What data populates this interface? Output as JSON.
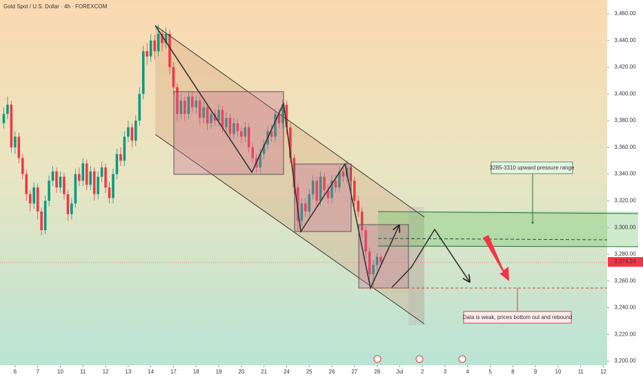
{
  "chart_data": {
    "type": "candlestick",
    "title": "Gold Spot / U.S. Dollar · 4h · FOREXCOM",
    "up_color": "#089981",
    "down_color": "#f23645",
    "grid": false,
    "ylim": [
      3200,
      3460
    ],
    "yticks": [
      {
        "value": 3200,
        "label": "3,200.00"
      },
      {
        "value": 3220,
        "label": "3,220.00"
      },
      {
        "value": 3240,
        "label": "3,240.00"
      },
      {
        "value": 3260,
        "label": "3,260.00"
      },
      {
        "value": 3280,
        "label": "3,280.00"
      },
      {
        "value": 3300,
        "label": "3,300.00"
      },
      {
        "value": 3320,
        "label": "3,320.00"
      },
      {
        "value": 3340,
        "label": "3,340.00"
      },
      {
        "value": 3360,
        "label": "3,360.00"
      },
      {
        "value": 3380,
        "label": "3,380.00"
      },
      {
        "value": 3400,
        "label": "3,400.00"
      },
      {
        "value": 3420,
        "label": "3,420.00"
      },
      {
        "value": 3440,
        "label": "3,440.00"
      },
      {
        "value": 3460,
        "label": "3,460.00"
      }
    ],
    "xlim": [
      -1,
      160
    ],
    "xticks": [
      {
        "value": 3,
        "label": "6"
      },
      {
        "value": 9,
        "label": "7"
      },
      {
        "value": 15,
        "label": "10"
      },
      {
        "value": 21,
        "label": "11"
      },
      {
        "value": 27,
        "label": "12"
      },
      {
        "value": 33,
        "label": "13"
      },
      {
        "value": 39,
        "label": "14"
      },
      {
        "value": 45,
        "label": "17"
      },
      {
        "value": 51,
        "label": "18"
      },
      {
        "value": 57,
        "label": "19"
      },
      {
        "value": 63,
        "label": "20"
      },
      {
        "value": 69,
        "label": "21"
      },
      {
        "value": 75,
        "label": "24"
      },
      {
        "value": 81,
        "label": "25"
      },
      {
        "value": 87,
        "label": "26"
      },
      {
        "value": 93,
        "label": "27"
      },
      {
        "value": 99,
        "label": "28"
      },
      {
        "value": 105,
        "label": "Jul"
      },
      {
        "value": 111,
        "label": "2"
      },
      {
        "value": 117,
        "label": "3"
      },
      {
        "value": 123,
        "label": "4"
      },
      {
        "value": 129,
        "label": "5"
      },
      {
        "value": 135,
        "label": "8"
      },
      {
        "value": 141,
        "label": "9"
      },
      {
        "value": 147,
        "label": "10"
      },
      {
        "value": 153,
        "label": "11"
      },
      {
        "value": 159,
        "label": "12"
      }
    ],
    "last_price_label": "3,274.24",
    "annotations": [
      "3285-3310 upward pressure range",
      "Data is weak, prices bottom out and rebound"
    ],
    "ohlc": [
      [
        3378,
        3390,
        3374,
        3385
      ],
      [
        3385,
        3398,
        3381,
        3392
      ],
      [
        3392,
        3395,
        3356,
        3360
      ],
      [
        3360,
        3372,
        3355,
        3368
      ],
      [
        3368,
        3371,
        3348,
        3352
      ],
      [
        3352,
        3355,
        3336,
        3340
      ],
      [
        3340,
        3343,
        3320,
        3325
      ],
      [
        3325,
        3328,
        3312,
        3318
      ],
      [
        3318,
        3334,
        3314,
        3330
      ],
      [
        3330,
        3333,
        3306,
        3312
      ],
      [
        3312,
        3315,
        3294,
        3298
      ],
      [
        3298,
        3324,
        3295,
        3320
      ],
      [
        3320,
        3339,
        3316,
        3335
      ],
      [
        3335,
        3346,
        3331,
        3342
      ],
      [
        3342,
        3345,
        3326,
        3330
      ],
      [
        3330,
        3342,
        3326,
        3338
      ],
      [
        3338,
        3341,
        3321,
        3325
      ],
      [
        3325,
        3328,
        3305,
        3310
      ],
      [
        3310,
        3322,
        3306,
        3318
      ],
      [
        3318,
        3344,
        3315,
        3340
      ],
      [
        3340,
        3345,
        3331,
        3335
      ],
      [
        3335,
        3352,
        3331,
        3348
      ],
      [
        3348,
        3351,
        3328,
        3332
      ],
      [
        3332,
        3346,
        3328,
        3342
      ],
      [
        3342,
        3345,
        3320,
        3325
      ],
      [
        3325,
        3342,
        3321,
        3338
      ],
      [
        3338,
        3349,
        3334,
        3345
      ],
      [
        3345,
        3348,
        3326,
        3330
      ],
      [
        3330,
        3334,
        3318,
        3322
      ],
      [
        3322,
        3344,
        3318,
        3340
      ],
      [
        3340,
        3359,
        3336,
        3355
      ],
      [
        3355,
        3360,
        3346,
        3350
      ],
      [
        3350,
        3372,
        3346,
        3368
      ],
      [
        3368,
        3380,
        3364,
        3375
      ],
      [
        3375,
        3378,
        3360,
        3365
      ],
      [
        3365,
        3384,
        3361,
        3380
      ],
      [
        3380,
        3405,
        3376,
        3400
      ],
      [
        3400,
        3436,
        3396,
        3432
      ],
      [
        3432,
        3438,
        3422,
        3428
      ],
      [
        3428,
        3445,
        3424,
        3440
      ],
      [
        3440,
        3444,
        3426,
        3432
      ],
      [
        3432,
        3452,
        3428,
        3445
      ],
      [
        3445,
        3448,
        3432,
        3438
      ],
      [
        3438,
        3450,
        3434,
        3445
      ],
      [
        3445,
        3448,
        3415,
        3420
      ],
      [
        3420,
        3424,
        3400,
        3405
      ],
      [
        3405,
        3408,
        3380,
        3385
      ],
      [
        3385,
        3400,
        3381,
        3395
      ],
      [
        3395,
        3398,
        3380,
        3385
      ],
      [
        3385,
        3402,
        3381,
        3398
      ],
      [
        3398,
        3402,
        3386,
        3390
      ],
      [
        3390,
        3399,
        3385,
        3395
      ],
      [
        3395,
        3398,
        3377,
        3382
      ],
      [
        3382,
        3394,
        3378,
        3390
      ],
      [
        3390,
        3393,
        3373,
        3378
      ],
      [
        3378,
        3389,
        3374,
        3385
      ],
      [
        3385,
        3389,
        3376,
        3380
      ],
      [
        3380,
        3392,
        3376,
        3388
      ],
      [
        3388,
        3391,
        3371,
        3375
      ],
      [
        3375,
        3386,
        3371,
        3382
      ],
      [
        3382,
        3385,
        3366,
        3370
      ],
      [
        3370,
        3382,
        3366,
        3378
      ],
      [
        3378,
        3381,
        3368,
        3372
      ],
      [
        3372,
        3376,
        3363,
        3368
      ],
      [
        3368,
        3379,
        3364,
        3375
      ],
      [
        3375,
        3378,
        3356,
        3360
      ],
      [
        3360,
        3363,
        3348,
        3352
      ],
      [
        3352,
        3355,
        3341,
        3345
      ],
      [
        3345,
        3359,
        3341,
        3355
      ],
      [
        3355,
        3366,
        3351,
        3362
      ],
      [
        3362,
        3376,
        3358,
        3372
      ],
      [
        3372,
        3377,
        3364,
        3368
      ],
      [
        3368,
        3389,
        3364,
        3385
      ],
      [
        3385,
        3389,
        3374,
        3378
      ],
      [
        3378,
        3396,
        3374,
        3392
      ],
      [
        3392,
        3395,
        3370,
        3375
      ],
      [
        3375,
        3378,
        3348,
        3352
      ],
      [
        3352,
        3355,
        3325,
        3330
      ],
      [
        3330,
        3333,
        3298,
        3305
      ],
      [
        3305,
        3322,
        3301,
        3318
      ],
      [
        3318,
        3322,
        3308,
        3312
      ],
      [
        3312,
        3329,
        3308,
        3325
      ],
      [
        3325,
        3339,
        3321,
        3335
      ],
      [
        3335,
        3338,
        3316,
        3320
      ],
      [
        3320,
        3342,
        3316,
        3338
      ],
      [
        3338,
        3341,
        3324,
        3328
      ],
      [
        3328,
        3332,
        3318,
        3322
      ],
      [
        3322,
        3339,
        3318,
        3335
      ],
      [
        3335,
        3339,
        3326,
        3330
      ],
      [
        3330,
        3346,
        3326,
        3342
      ],
      [
        3342,
        3346,
        3334,
        3338
      ],
      [
        3338,
        3350,
        3334,
        3345
      ],
      [
        3345,
        3348,
        3331,
        3335
      ],
      [
        3335,
        3338,
        3316,
        3320
      ],
      [
        3320,
        3324,
        3308,
        3312
      ],
      [
        3312,
        3315,
        3293,
        3298
      ],
      [
        3298,
        3301,
        3277,
        3282
      ],
      [
        3282,
        3285,
        3258,
        3265
      ],
      [
        3265,
        3276,
        3255,
        3272
      ],
      [
        3272,
        3281,
        3268,
        3278
      ],
      [
        3278,
        3280,
        3270,
        3274.24
      ]
    ]
  }
}
